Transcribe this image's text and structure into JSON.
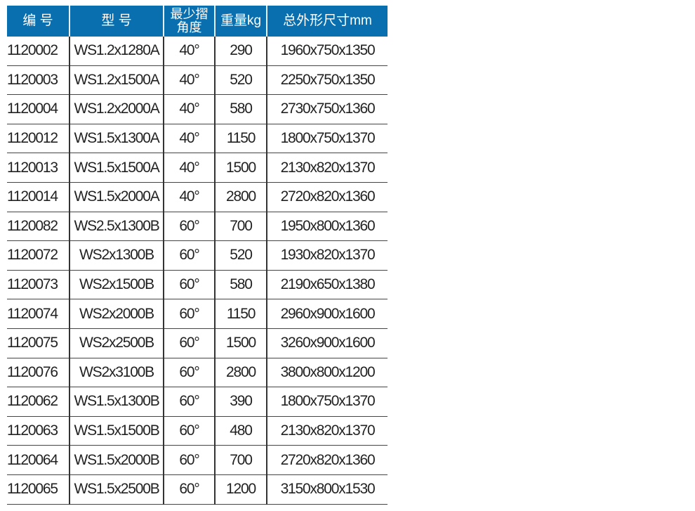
{
  "headers": [
    "编 号",
    "型 号",
    "最少摺角度",
    "重量kg",
    "总外形尺寸mm"
  ],
  "header_color": "#0a6fae",
  "rows": [
    [
      "1120002",
      "WS1.2x1280A",
      "40°",
      "290",
      "1960x750x1350"
    ],
    [
      "1120003",
      "WS1.2x1500A",
      "40°",
      "520",
      "2250x750x1350"
    ],
    [
      "1120004",
      "WS1.2x2000A",
      "40°",
      "580",
      "2730x750x1360"
    ],
    [
      "1120012",
      "WS1.5x1300A",
      "40°",
      "1150",
      "1800x750x1370"
    ],
    [
      "1120013",
      "WS1.5x1500A",
      "40°",
      "1500",
      "2130x820x1370"
    ],
    [
      "1120014",
      "WS1.5x2000A",
      "40°",
      "2800",
      "2720x820x1360"
    ],
    [
      "1120082",
      "WS2.5x1300B",
      "60°",
      "700",
      "1950x800x1360"
    ],
    [
      "1120072",
      "WS2x1300B",
      "60°",
      "520",
      "1930x820x1370"
    ],
    [
      "1120073",
      "WS2x1500B",
      "60°",
      "580",
      "2190x650x1380"
    ],
    [
      "1120074",
      "WS2x2000B",
      "60°",
      "1150",
      "2960x900x1600"
    ],
    [
      "1120075",
      "WS2x2500B",
      "60°",
      "1500",
      "3260x900x1600"
    ],
    [
      "1120076",
      "WS2x3100B",
      "60°",
      "2800",
      "3800x800x1200"
    ],
    [
      "1120062",
      "WS1.5x1300B",
      "60°",
      "390",
      "1800x750x1370"
    ],
    [
      "1120063",
      "WS1.5x1500B",
      "60°",
      "480",
      "2130x820x1370"
    ],
    [
      "1120064",
      "WS1.5x2000B",
      "60°",
      "700",
      "2720x820x1360"
    ],
    [
      "1120065",
      "WS1.5x2500B",
      "60°",
      "1200",
      "3150x800x1530"
    ]
  ]
}
